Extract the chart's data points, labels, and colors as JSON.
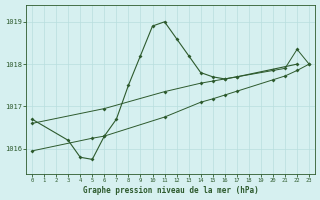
{
  "title": "Graphe pression niveau de la mer (hPa)",
  "bg_color": "#d6f0f0",
  "line_color": "#2d5a2d",
  "grid_color": "#b8dede",
  "xlim": [
    -0.5,
    23.5
  ],
  "ylim": [
    1015.4,
    1019.4
  ],
  "yticks": [
    1016,
    1017,
    1018,
    1019
  ],
  "xticks": [
    0,
    1,
    2,
    3,
    4,
    5,
    6,
    7,
    8,
    9,
    10,
    11,
    12,
    13,
    14,
    15,
    16,
    17,
    18,
    19,
    20,
    21,
    22,
    23
  ],
  "line1_x": [
    0,
    3,
    4,
    5,
    6,
    7,
    8,
    9,
    10,
    11,
    12,
    13,
    14,
    15,
    16,
    17,
    22
  ],
  "line1_y": [
    1016.7,
    1016.2,
    1015.8,
    1015.75,
    1016.3,
    1016.7,
    1017.5,
    1018.2,
    1018.9,
    1019.0,
    1018.6,
    1018.2,
    1017.8,
    1017.7,
    1017.65,
    1017.7,
    1018.0
  ],
  "line2_x": [
    0,
    6,
    11,
    14,
    15,
    16,
    17,
    20,
    21,
    22,
    23
  ],
  "line2_y": [
    1016.6,
    1016.95,
    1017.35,
    1017.55,
    1017.6,
    1017.65,
    1017.7,
    1017.85,
    1017.9,
    1018.35,
    1018.0
  ],
  "line3_x": [
    0,
    5,
    6,
    11,
    14,
    15,
    16,
    17,
    20,
    21,
    22,
    23
  ],
  "line3_y": [
    1015.95,
    1016.25,
    1016.3,
    1016.75,
    1017.1,
    1017.18,
    1017.27,
    1017.36,
    1017.63,
    1017.72,
    1017.85,
    1018.0
  ]
}
